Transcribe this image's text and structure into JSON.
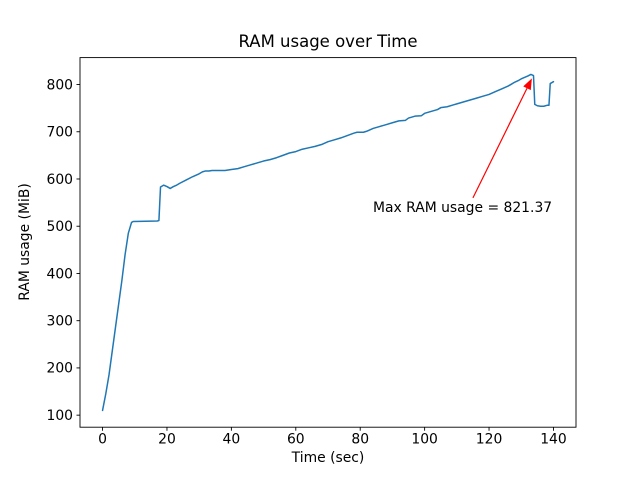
{
  "figure": {
    "background": "#ffffff"
  },
  "chart_data": {
    "type": "line",
    "title": "RAM usage over Time",
    "xlabel": "Time (sec)",
    "ylabel": "RAM usage (MiB)",
    "line_color": "#1f77b4",
    "axis_color": "#000000",
    "grid": false,
    "xlim": [
      -7,
      147
    ],
    "ylim": [
      74.5,
      857
    ],
    "xticks": [
      0,
      20,
      40,
      60,
      80,
      100,
      120,
      140
    ],
    "yticks": [
      100,
      200,
      300,
      400,
      500,
      600,
      700,
      800
    ],
    "x": [
      0,
      1,
      2,
      3,
      4,
      5,
      6,
      7,
      8,
      9,
      9.5,
      17,
      17.5,
      18,
      19,
      20,
      21,
      22,
      23,
      24,
      26,
      28,
      30,
      31,
      32,
      33,
      34,
      36,
      38,
      40,
      42,
      44,
      46,
      48,
      50,
      52,
      54,
      56,
      58,
      60,
      62,
      64,
      66,
      68,
      70,
      72,
      74,
      76,
      78,
      79,
      81,
      82,
      84,
      86,
      88,
      90,
      92,
      94,
      95,
      97,
      99,
      100,
      102,
      104,
      105,
      107,
      109,
      110,
      112,
      114,
      116,
      118,
      120,
      122,
      124,
      126,
      127,
      128,
      129,
      130,
      131,
      132,
      133,
      133.8,
      134.2,
      135,
      136,
      137,
      138,
      138.6,
      139,
      140
    ],
    "y": [
      110,
      145,
      185,
      235,
      285,
      335,
      385,
      440,
      485,
      508,
      510,
      511,
      512,
      583,
      587,
      584,
      580,
      584,
      587,
      591,
      598,
      605,
      611,
      615,
      617,
      617,
      618,
      618,
      618,
      620,
      622,
      626,
      630,
      634,
      638,
      641,
      645,
      650,
      655,
      658,
      663,
      666,
      669,
      673,
      679,
      683,
      687,
      692,
      697,
      699,
      699,
      701,
      707,
      711,
      715,
      719,
      723,
      724,
      729,
      733,
      734,
      739,
      743,
      747,
      751,
      753,
      757,
      759,
      763,
      767,
      771,
      775,
      779,
      785,
      791,
      797,
      801,
      805,
      808,
      812,
      815,
      818,
      821.37,
      819,
      758,
      755,
      754,
      754,
      756,
      756,
      802,
      806
    ],
    "max_value": 821.37,
    "annotation": {
      "text": "Max RAM usage = 821.37",
      "color": "#ff0000",
      "arrow_from_data": [
        115,
        560
      ],
      "arrow_to_data": [
        133.3,
        813
      ]
    }
  }
}
